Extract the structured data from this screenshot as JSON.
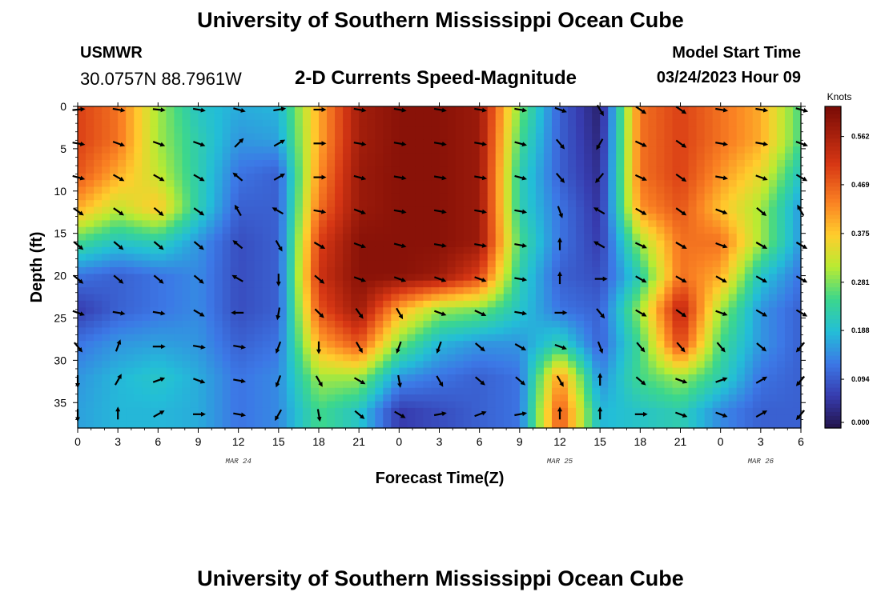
{
  "header": {
    "title": "University of Southern Mississippi Ocean Cube",
    "station_name": "USMWR",
    "station_coords": "30.0757N  88.7961W",
    "subtitle": "2-D Currents Speed-Magnitude",
    "model_start_label": "Model Start Time",
    "model_start_value": "03/24/2023 Hour 09"
  },
  "footer": {
    "title": "University of Southern Mississippi Ocean Cube"
  },
  "chart_data": {
    "type": "heatmap",
    "title": "2-D Currents Speed-Magnitude",
    "xlabel": "Forecast Time(Z)",
    "ylabel": "Depth (ft)",
    "x_tick_labels": [
      "0",
      "3",
      "6",
      "9",
      "12",
      "15",
      "18",
      "21",
      "0",
      "3",
      "6",
      "9",
      "12",
      "15",
      "18",
      "21",
      "0",
      "3",
      "6"
    ],
    "x_hours": [
      0,
      3,
      6,
      9,
      12,
      15,
      18,
      21,
      24,
      27,
      30,
      33,
      36,
      39,
      42,
      45,
      48,
      51,
      54
    ],
    "date_labels": [
      {
        "label": "MAR 24",
        "hour": 12
      },
      {
        "label": "MAR 25",
        "hour": 36
      },
      {
        "label": "MAR 26",
        "hour": 51
      }
    ],
    "y_tick_labels": [
      "0",
      "5",
      "10",
      "15",
      "20",
      "25",
      "30",
      "35"
    ],
    "y_ticks": [
      0,
      5,
      10,
      15,
      20,
      25,
      30,
      35
    ],
    "ylim": [
      0,
      38
    ],
    "y_inverted": true,
    "colorbar": {
      "title": "Knots",
      "ticks": [
        0.0,
        0.094,
        0.188,
        0.281,
        0.375,
        0.469,
        0.562
      ],
      "tick_labels": [
        "0.000",
        "0.094",
        "0.188",
        "0.281",
        "0.375",
        "0.469",
        "0.562"
      ],
      "range": [
        0,
        0.62
      ],
      "colormap": "jet"
    },
    "arrow_times": [
      0,
      3,
      6,
      9,
      12,
      15,
      18,
      21,
      24,
      27,
      30,
      33,
      36,
      39,
      42,
      45,
      48,
      51,
      54
    ],
    "arrow_depths": [
      0,
      4,
      8,
      12,
      16,
      20,
      24,
      28,
      32,
      36
    ],
    "speed": [
      [
        0.5,
        0.45,
        0.3,
        0.2,
        0.17,
        0.18,
        0.4,
        0.57,
        0.6,
        0.6,
        0.58,
        0.28,
        0.1,
        0.02,
        0.45,
        0.5,
        0.45,
        0.4,
        0.25
      ],
      [
        0.5,
        0.45,
        0.3,
        0.22,
        0.15,
        0.16,
        0.4,
        0.57,
        0.6,
        0.6,
        0.58,
        0.25,
        0.1,
        0.03,
        0.45,
        0.5,
        0.45,
        0.4,
        0.25
      ],
      [
        0.48,
        0.4,
        0.32,
        0.22,
        0.12,
        0.1,
        0.42,
        0.58,
        0.6,
        0.6,
        0.58,
        0.22,
        0.1,
        0.04,
        0.45,
        0.5,
        0.42,
        0.35,
        0.2
      ],
      [
        0.4,
        0.32,
        0.38,
        0.22,
        0.1,
        0.1,
        0.45,
        0.58,
        0.6,
        0.6,
        0.58,
        0.22,
        0.12,
        0.05,
        0.42,
        0.48,
        0.38,
        0.3,
        0.15
      ],
      [
        0.25,
        0.2,
        0.22,
        0.15,
        0.08,
        0.1,
        0.5,
        0.6,
        0.6,
        0.6,
        0.58,
        0.25,
        0.12,
        0.06,
        0.3,
        0.45,
        0.45,
        0.3,
        0.15
      ],
      [
        0.12,
        0.1,
        0.12,
        0.14,
        0.08,
        0.1,
        0.52,
        0.6,
        0.6,
        0.58,
        0.5,
        0.22,
        0.1,
        0.08,
        0.22,
        0.45,
        0.4,
        0.2,
        0.12
      ],
      [
        0.06,
        0.1,
        0.12,
        0.14,
        0.08,
        0.1,
        0.48,
        0.58,
        0.4,
        0.3,
        0.28,
        0.2,
        0.12,
        0.1,
        0.3,
        0.55,
        0.3,
        0.15,
        0.1
      ],
      [
        0.12,
        0.15,
        0.16,
        0.15,
        0.1,
        0.12,
        0.4,
        0.48,
        0.28,
        0.18,
        0.15,
        0.15,
        0.22,
        0.1,
        0.25,
        0.5,
        0.25,
        0.15,
        0.1
      ],
      [
        0.15,
        0.18,
        0.2,
        0.17,
        0.12,
        0.14,
        0.3,
        0.3,
        0.15,
        0.12,
        0.1,
        0.12,
        0.42,
        0.14,
        0.25,
        0.3,
        0.22,
        0.12,
        0.1
      ],
      [
        0.16,
        0.18,
        0.18,
        0.17,
        0.12,
        0.14,
        0.25,
        0.2,
        0.06,
        0.08,
        0.1,
        0.12,
        0.48,
        0.18,
        0.2,
        0.22,
        0.14,
        0.1,
        0.1
      ]
    ],
    "direction_deg": [
      [
        85,
        100,
        95,
        100,
        105,
        80,
        90,
        100,
        100,
        100,
        100,
        100,
        110,
        150,
        125,
        125,
        100,
        100,
        105
      ],
      [
        100,
        110,
        110,
        110,
        45,
        60,
        90,
        100,
        100,
        100,
        100,
        105,
        140,
        210,
        115,
        125,
        100,
        100,
        110
      ],
      [
        105,
        120,
        120,
        120,
        310,
        60,
        90,
        105,
        100,
        100,
        100,
        105,
        140,
        220,
        115,
        125,
        100,
        110,
        120
      ],
      [
        125,
        125,
        130,
        125,
        330,
        300,
        100,
        110,
        100,
        100,
        100,
        100,
        160,
        300,
        120,
        125,
        110,
        130,
        330
      ],
      [
        130,
        130,
        130,
        130,
        310,
        150,
        120,
        110,
        105,
        100,
        100,
        100,
        0,
        300,
        115,
        120,
        110,
        120,
        120
      ],
      [
        130,
        130,
        130,
        130,
        300,
        180,
        130,
        110,
        110,
        110,
        110,
        100,
        0,
        90,
        120,
        120,
        120,
        120,
        120
      ],
      [
        110,
        100,
        100,
        120,
        270,
        190,
        135,
        145,
        150,
        110,
        115,
        100,
        90,
        140,
        120,
        125,
        110,
        120,
        120
      ],
      [
        140,
        20,
        90,
        100,
        100,
        200,
        180,
        150,
        200,
        200,
        130,
        120,
        110,
        160,
        140,
        140,
        140,
        130,
        220
      ],
      [
        180,
        30,
        70,
        110,
        100,
        200,
        150,
        120,
        170,
        150,
        130,
        130,
        150,
        0,
        130,
        110,
        70,
        60,
        220
      ],
      [
        180,
        0,
        60,
        90,
        100,
        210,
        170,
        130,
        120,
        80,
        70,
        80,
        0,
        0,
        90,
        110,
        110,
        60,
        220
      ]
    ]
  }
}
